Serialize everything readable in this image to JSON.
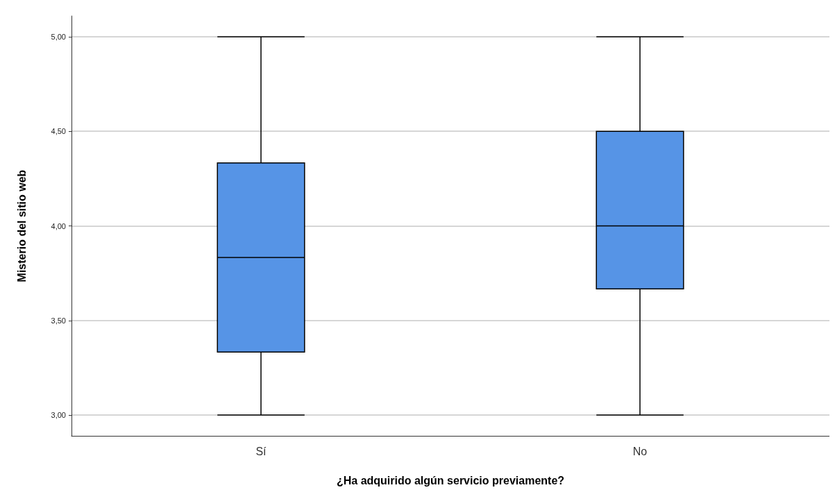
{
  "chart_data": {
    "type": "box",
    "xlabel": "¿Ha adquirido algún servicio previamente?",
    "ylabel": "Misterio del sitio web",
    "categories": [
      "Sí",
      "No"
    ],
    "series": [
      {
        "color": "#5694e6",
        "boxes": [
          {
            "low": 3,
            "q1": 3.333,
            "median": 3.833,
            "q3": 4.333,
            "high": 5
          },
          {
            "low": 3,
            "q1": 3.667,
            "median": 4,
            "q3": 4.5,
            "high": 5
          }
        ]
      }
    ],
    "ylim": [
      2.89,
      5.11
    ],
    "yticks": [
      {
        "value": 3,
        "label": "3,00"
      },
      {
        "value": 3.5,
        "label": "3,50"
      },
      {
        "value": 4,
        "label": "4,00"
      },
      {
        "value": 4.5,
        "label": "4,50"
      },
      {
        "value": 5,
        "label": "5,00"
      }
    ],
    "grid": "y"
  }
}
